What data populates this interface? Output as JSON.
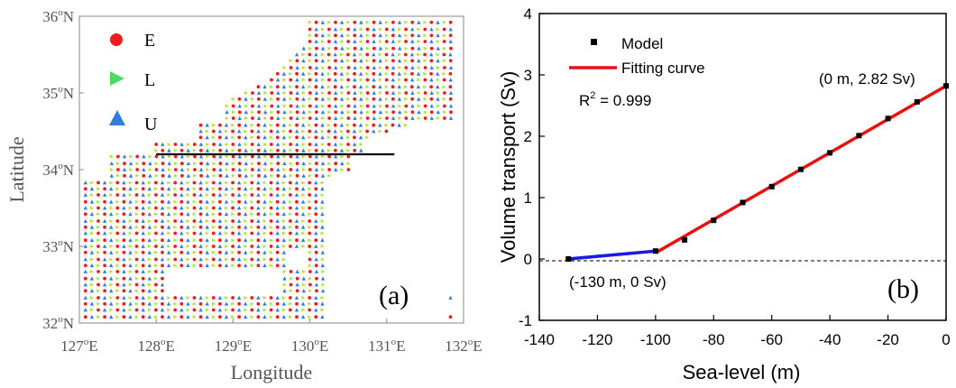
{
  "chart_data": [
    {
      "type": "scatter",
      "panel_label": "(a)",
      "xlabel": "Longitude",
      "ylabel": "Latitude",
      "xlim": [
        127,
        132
      ],
      "ylim": [
        32,
        36
      ],
      "x_ticks": [
        {
          "value": 127,
          "deg": "127",
          "hemi": "E"
        },
        {
          "value": 128,
          "deg": "128",
          "hemi": "E"
        },
        {
          "value": 129,
          "deg": "129",
          "hemi": "E"
        },
        {
          "value": 130,
          "deg": "130",
          "hemi": "E"
        },
        {
          "value": 131,
          "deg": "131",
          "hemi": "E"
        },
        {
          "value": 132,
          "deg": "132",
          "hemi": "E"
        }
      ],
      "y_ticks": [
        {
          "value": 32,
          "deg": "32",
          "hemi": "N"
        },
        {
          "value": 33,
          "deg": "33",
          "hemi": "N"
        },
        {
          "value": 34,
          "deg": "34",
          "hemi": "N"
        },
        {
          "value": 35,
          "deg": "35",
          "hemi": "N"
        },
        {
          "value": 36,
          "deg": "36",
          "hemi": "N"
        }
      ],
      "legend": [
        {
          "label": "E",
          "marker": "circle",
          "color": "#ee1c1c"
        },
        {
          "label": "L",
          "marker": "triangle-right",
          "color": "#4cd964"
        },
        {
          "label": "U",
          "marker": "triangle-up",
          "color": "#2f7fd6"
        }
      ],
      "grid_spacing_deg": 0.0833,
      "grid_pattern": "rows alternate E-L and U-E; columns repeat U, L, E",
      "colors": {
        "E": "#ee1c1c",
        "L": "#b8e020",
        "U": "#2f7fd6"
      },
      "domain_rows": [
        {
          "lat": 35.92,
          "ranges": [
            [
              130.0,
              131.83
            ]
          ]
        },
        {
          "lat": 35.83,
          "ranges": [
            [
              130.0,
              131.83
            ]
          ]
        },
        {
          "lat": 35.75,
          "ranges": [
            [
              130.0,
              131.83
            ]
          ]
        },
        {
          "lat": 35.67,
          "ranges": [
            [
              130.0,
              131.83
            ]
          ]
        },
        {
          "lat": 35.58,
          "ranges": [
            [
              129.92,
              131.83
            ]
          ]
        },
        {
          "lat": 35.5,
          "ranges": [
            [
              129.83,
              131.83
            ]
          ]
        },
        {
          "lat": 35.42,
          "ranges": [
            [
              129.75,
              131.83
            ]
          ]
        },
        {
          "lat": 35.33,
          "ranges": [
            [
              129.67,
              131.83
            ]
          ]
        },
        {
          "lat": 35.25,
          "ranges": [
            [
              129.58,
              131.83
            ]
          ]
        },
        {
          "lat": 35.17,
          "ranges": [
            [
              129.5,
              131.83
            ]
          ]
        },
        {
          "lat": 35.08,
          "ranges": [
            [
              129.33,
              131.83
            ]
          ]
        },
        {
          "lat": 35.0,
          "ranges": [
            [
              129.17,
              131.83
            ]
          ]
        },
        {
          "lat": 34.92,
          "ranges": [
            [
              129.0,
              131.83
            ]
          ]
        },
        {
          "lat": 34.83,
          "ranges": [
            [
              128.92,
              131.83
            ]
          ]
        },
        {
          "lat": 34.75,
          "ranges": [
            [
              128.92,
              131.83
            ]
          ]
        },
        {
          "lat": 34.67,
          "ranges": [
            [
              128.92,
              131.83
            ]
          ]
        },
        {
          "lat": 34.58,
          "ranges": [
            [
              128.58,
              131.25
            ]
          ]
        },
        {
          "lat": 34.5,
          "ranges": [
            [
              128.58,
              131.0
            ]
          ]
        },
        {
          "lat": 34.42,
          "ranges": [
            [
              128.58,
              130.75
            ]
          ]
        },
        {
          "lat": 34.33,
          "ranges": [
            [
              128.0,
              130.67
            ]
          ]
        },
        {
          "lat": 34.25,
          "ranges": [
            [
              128.0,
              130.67
            ]
          ]
        },
        {
          "lat": 34.17,
          "ranges": [
            [
              127.42,
              130.5
            ]
          ]
        },
        {
          "lat": 34.08,
          "ranges": [
            [
              127.42,
              130.5
            ]
          ]
        },
        {
          "lat": 34.0,
          "ranges": [
            [
              127.42,
              130.5
            ]
          ]
        },
        {
          "lat": 33.92,
          "ranges": [
            [
              127.42,
              130.25
            ]
          ]
        },
        {
          "lat": 33.83,
          "ranges": [
            [
              127.08,
              130.17
            ]
          ]
        },
        {
          "lat": 33.75,
          "ranges": [
            [
              127.08,
              130.17
            ]
          ]
        },
        {
          "lat": 33.67,
          "ranges": [
            [
              127.08,
              130.17
            ]
          ]
        },
        {
          "lat": 33.58,
          "ranges": [
            [
              127.08,
              130.17
            ]
          ]
        },
        {
          "lat": 33.5,
          "ranges": [
            [
              127.08,
              130.17
            ]
          ]
        },
        {
          "lat": 33.42,
          "ranges": [
            [
              127.08,
              130.17
            ]
          ]
        },
        {
          "lat": 33.33,
          "ranges": [
            [
              127.08,
              130.17
            ]
          ]
        },
        {
          "lat": 33.25,
          "ranges": [
            [
              127.08,
              130.17
            ]
          ]
        },
        {
          "lat": 33.17,
          "ranges": [
            [
              127.08,
              130.17
            ]
          ]
        },
        {
          "lat": 33.08,
          "ranges": [
            [
              127.08,
              130.17
            ]
          ]
        },
        {
          "lat": 33.0,
          "ranges": [
            [
              127.08,
              130.17
            ]
          ]
        },
        {
          "lat": 32.92,
          "ranges": [
            [
              127.08,
              129.67
            ],
            [
              130.0,
              130.17
            ]
          ]
        },
        {
          "lat": 32.83,
          "ranges": [
            [
              127.08,
              129.67
            ],
            [
              130.0,
              130.17
            ]
          ]
        },
        {
          "lat": 32.75,
          "ranges": [
            [
              127.08,
              129.67
            ],
            [
              130.0,
              130.17
            ]
          ]
        },
        {
          "lat": 32.67,
          "ranges": [
            [
              127.08,
              128.08
            ],
            [
              129.67,
              130.17
            ]
          ]
        },
        {
          "lat": 32.58,
          "ranges": [
            [
              127.08,
              128.08
            ],
            [
              129.67,
              130.17
            ]
          ]
        },
        {
          "lat": 32.5,
          "ranges": [
            [
              127.08,
              128.08
            ],
            [
              129.67,
              130.17
            ]
          ]
        },
        {
          "lat": 32.42,
          "ranges": [
            [
              127.08,
              128.08
            ],
            [
              129.67,
              130.17
            ]
          ]
        },
        {
          "lat": 32.33,
          "ranges": [
            [
              127.08,
              130.17
            ],
            [
              131.83,
              131.83
            ]
          ]
        },
        {
          "lat": 32.25,
          "ranges": [
            [
              127.08,
              130.17
            ]
          ]
        },
        {
          "lat": 32.17,
          "ranges": [
            [
              127.08,
              130.17
            ]
          ]
        },
        {
          "lat": 32.08,
          "ranges": [
            [
              127.08,
              130.17
            ],
            [
              131.83,
              131.83
            ]
          ]
        }
      ],
      "section_line": {
        "lat": 34.2,
        "lon_start": 128.0,
        "lon_end": 131.1,
        "color": "#000000"
      }
    },
    {
      "type": "line",
      "panel_label": "(b)",
      "xlabel": "Sea-level (m)",
      "ylabel": "Volume transport (Sv)",
      "xlim": [
        -140,
        0
      ],
      "ylim": [
        -1,
        4
      ],
      "x_tick_labels": [
        "-140",
        "-120",
        "-100",
        "-80",
        "-60",
        "-40",
        "-20",
        "0"
      ],
      "y_tick_labels": [
        "-1",
        "0",
        "1",
        "2",
        "3",
        "4"
      ],
      "legend": [
        {
          "label": "Model",
          "marker": "square",
          "color": "#000000"
        },
        {
          "label": "Fitting curve",
          "marker": "line",
          "color": "#e81010"
        }
      ],
      "r2_prefix": "R",
      "r2_sup": "2",
      "r2_value": " = 0.999",
      "annotations": [
        {
          "text": "(0 m, 2.82 Sv)",
          "anchor": "top-right"
        },
        {
          "text": "(-130 m, 0 Sv)",
          "anchor": "bottom-left"
        }
      ],
      "series": [
        {
          "name": "Model",
          "type": "scatter",
          "color": "#000000",
          "x": [
            -130,
            -100,
            -90,
            -80,
            -70,
            -60,
            -50,
            -40,
            -30,
            -20,
            -10,
            0
          ],
          "y": [
            0.0,
            0.13,
            0.31,
            0.63,
            0.92,
            1.18,
            1.46,
            1.73,
            2.01,
            2.29,
            2.56,
            2.82
          ]
        },
        {
          "name": "Fitting curve",
          "type": "line",
          "color": "#e81010",
          "x": [
            -100,
            0
          ],
          "y": [
            0.1,
            2.82
          ]
        },
        {
          "type": "line",
          "color": "#1a1ae0",
          "x": [
            -130,
            -100
          ],
          "y": [
            0.0,
            0.13
          ]
        }
      ],
      "zero_line": {
        "y": 0,
        "style": "dashed"
      }
    }
  ]
}
